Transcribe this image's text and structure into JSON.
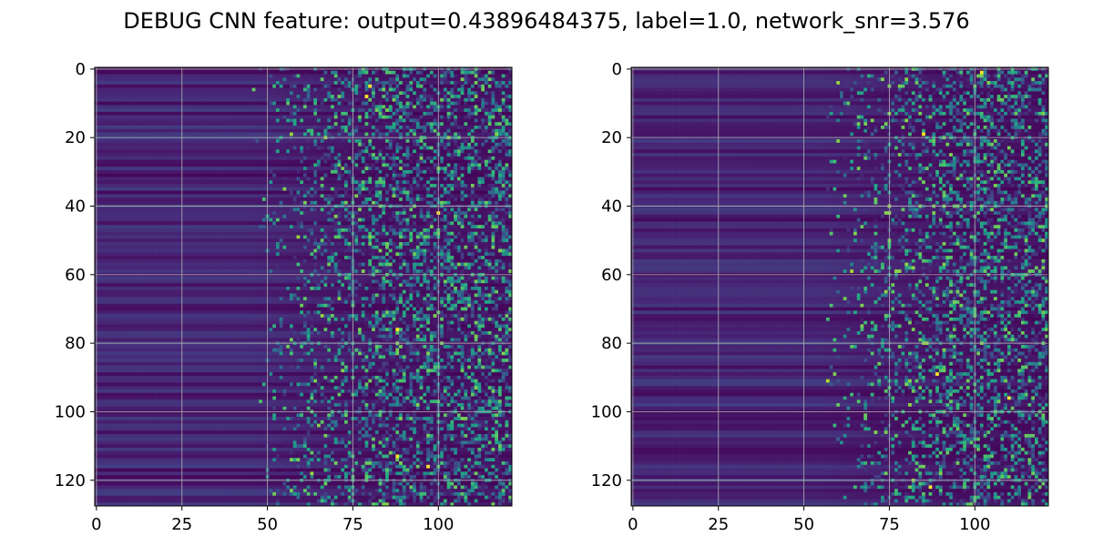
{
  "figure": {
    "title": "DEBUG CNN feature: output=0.43896484375, label=1.0, network_snr=3.576"
  },
  "chart_data": [
    {
      "type": "heatmap",
      "title": "",
      "xlabel": "",
      "ylabel": "",
      "rows": 128,
      "cols": 122,
      "xlim": [
        -0.5,
        121.5
      ],
      "ylim": [
        127.5,
        -0.5
      ],
      "y_axis_inverted": true,
      "grid": true,
      "colormap": "viridis",
      "xticks": [
        0,
        25,
        50,
        75,
        100
      ],
      "yticks": [
        0,
        20,
        40,
        60,
        80,
        100,
        120
      ],
      "description_of_values": "low uniform intensity in columns 0-45, increasingly noisy speckled activity toward columns 60-121; a few bright outliers",
      "bright_cells": [
        [
          8,
          79
        ],
        [
          5,
          80
        ],
        [
          42,
          100
        ],
        [
          76,
          88
        ],
        [
          113,
          88
        ],
        [
          116,
          97
        ]
      ],
      "colors": {
        "low": "#440154",
        "mid": "#21918c",
        "high": "#fde725"
      }
    },
    {
      "type": "heatmap",
      "title": "",
      "xlabel": "",
      "ylabel": "",
      "rows": 128,
      "cols": 122,
      "xlim": [
        -0.5,
        121.5
      ],
      "ylim": [
        127.5,
        -0.5
      ],
      "y_axis_inverted": true,
      "grid": true,
      "colormap": "viridis",
      "xticks": [
        0,
        25,
        50,
        75,
        100
      ],
      "yticks": [
        0,
        20,
        40,
        60,
        80,
        100,
        120
      ],
      "description_of_values": "low uniform intensity in columns 0-50, sparse speckled activity in columns 65-121; a few bright outliers",
      "bright_cells": [
        [
          1,
          102
        ],
        [
          19,
          85
        ],
        [
          89,
          89
        ],
        [
          122,
          87
        ],
        [
          96,
          110
        ]
      ],
      "colors": {
        "low": "#440154",
        "mid": "#21918c",
        "high": "#fde725"
      }
    }
  ]
}
